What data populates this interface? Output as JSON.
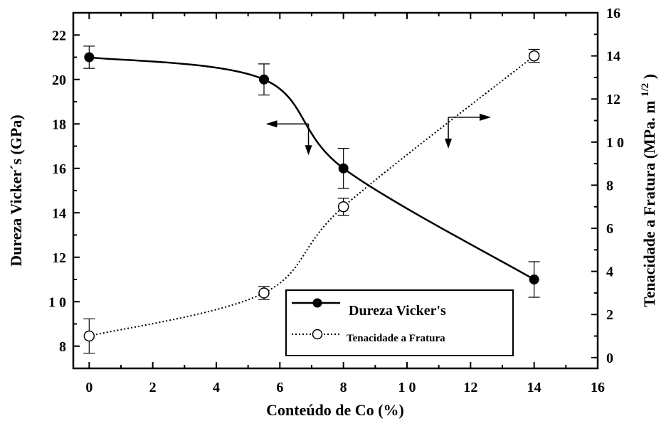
{
  "chart_data": {
    "type": "line",
    "xlabel": "Conteúdo de Co (%)",
    "ylabel_left": "Dureza Vicker´s (GPa)",
    "ylabel_right": "Tenacidade a Fratura (MPa. m",
    "ylabel_right_sup": "1/2",
    "ylabel_right_close": ")",
    "xlim": [
      -0.5,
      16
    ],
    "ylim_left": [
      7,
      23
    ],
    "ylim_right": [
      -0.5,
      16
    ],
    "x_ticks": [
      "0",
      "2",
      "4",
      "6",
      "8",
      "1 0",
      "12",
      "14",
      "16"
    ],
    "y_left_ticks": [
      "8",
      "1 0",
      "12",
      "14",
      "16",
      "18",
      "20",
      "22"
    ],
    "y_right_ticks": [
      "0",
      "2",
      "4",
      "6",
      "8",
      "1 0",
      "12",
      "14",
      "16"
    ],
    "grid": false,
    "legend_position": "bottom-right",
    "series": [
      {
        "name": "Dureza Vicker's",
        "axis": "left",
        "marker": "filled-circle",
        "line": "solid",
        "x": [
          0,
          5.5,
          8,
          14
        ],
        "y": [
          21.0,
          20.0,
          16.0,
          11.0
        ],
        "error": [
          0.5,
          0.7,
          0.9,
          0.8
        ]
      },
      {
        "name": "Tenacidade a Fratura",
        "axis": "right",
        "marker": "open-circle",
        "line": "dotted",
        "x": [
          0,
          5.5,
          8,
          14
        ],
        "y": [
          1.0,
          3.0,
          7.0,
          14.0
        ],
        "error": [
          0.8,
          0.3,
          0.4,
          0.3
        ]
      }
    ],
    "annotations": [
      {
        "type": "arrow-pointer",
        "x": 6.9,
        "y_left": 18.0,
        "direction": "left"
      },
      {
        "type": "arrow-pointer",
        "x": 11.3,
        "y_left": 18.3,
        "direction": "right"
      }
    ]
  }
}
